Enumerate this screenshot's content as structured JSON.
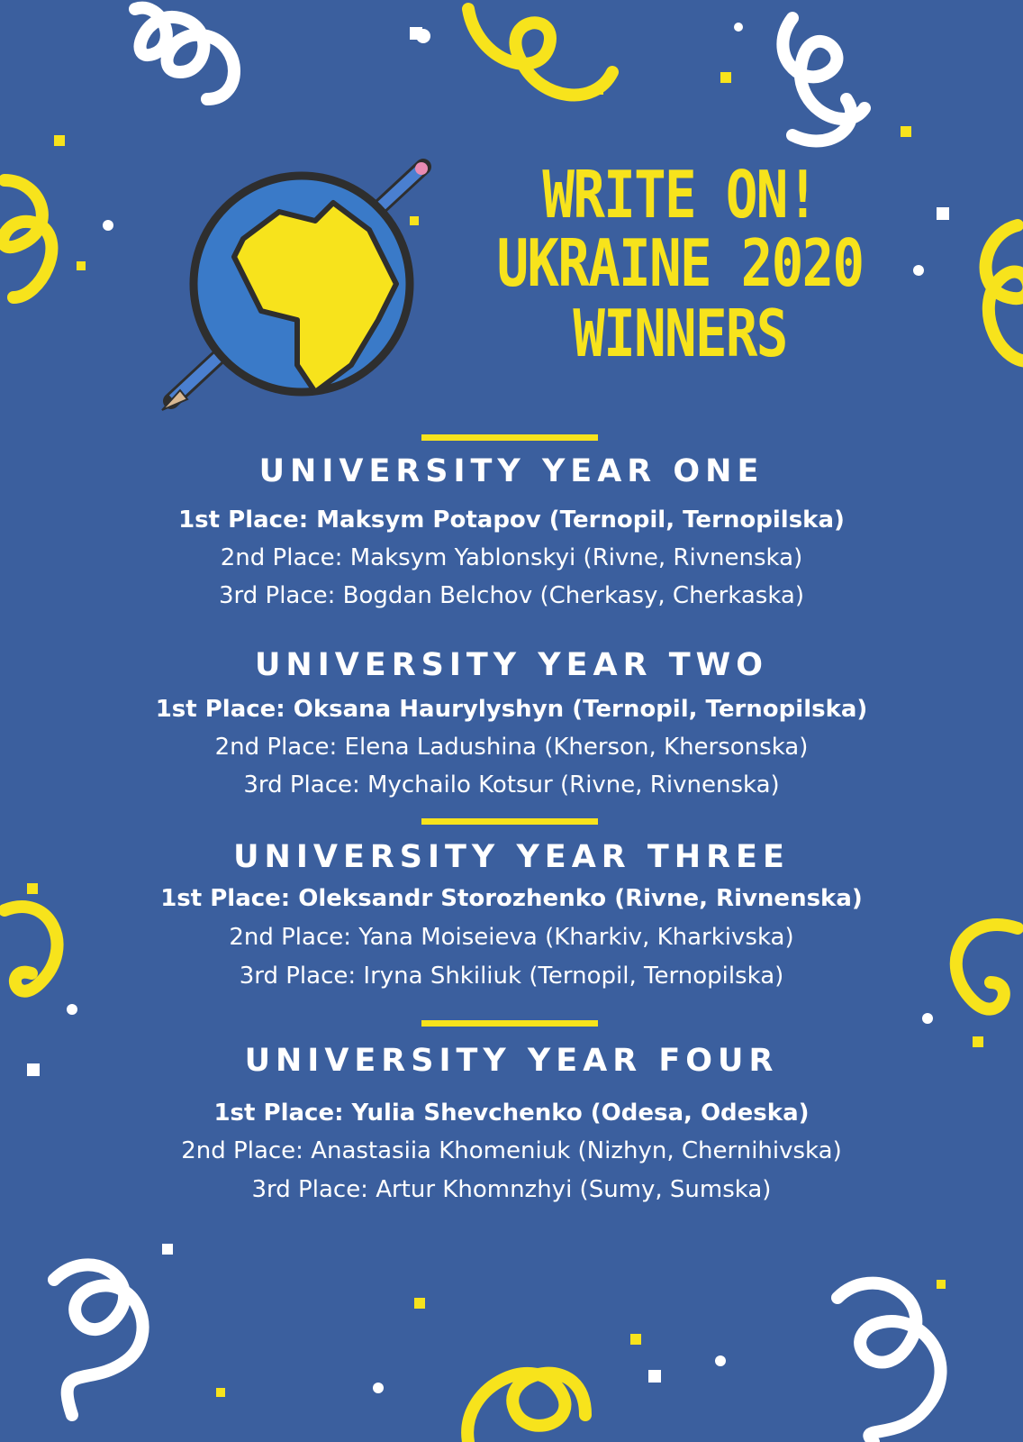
{
  "colors": {
    "background": "#3b5f9e",
    "accent": "#f7e31c",
    "text": "#ffffff",
    "globe_ocean": "#3a7ac8"
  },
  "logo": {
    "icon": "globe-with-pencil-icon"
  },
  "title": [
    "WRITE ON!",
    "UKRAINE 2020",
    "WINNERS"
  ],
  "sections": [
    {
      "heading": "UNIVERSITY YEAR ONE",
      "places": [
        "1st Place: Maksym Potapov (Ternopil, Ternopilska)",
        "2nd Place: Maksym Yablonskyi (Rivne, Rivnenska)",
        "3rd Place: Bogdan Belchov (Cherkasy, Cherkaska)"
      ]
    },
    {
      "heading": "UNIVERSITY YEAR TWO",
      "places": [
        "1st Place: Oksana Haurylyshyn (Ternopil, Ternopilska)",
        "2nd Place: Elena Ladushina (Kherson, Khersonska)",
        "3rd Place: Mychailo Kotsur (Rivne, Rivnenska)"
      ]
    },
    {
      "heading": "UNIVERSITY YEAR THREE",
      "places": [
        "1st Place: Oleksandr Storozhenko (Rivne, Rivnenska)",
        "2nd Place: Yana Moiseieva (Kharkiv, Kharkivska)",
        "3rd Place: Iryna Shkiliuk (Ternopil, Ternopilska)"
      ]
    },
    {
      "heading": "UNIVERSITY YEAR FOUR",
      "places": [
        "1st Place: Yulia Shevchenko (Odesa, Odeska)",
        "2nd Place: Anastasiia Khomeniuk (Nizhyn, Chernihivska)",
        "3rd Place: Artur Khomnzhyi (Sumy, Sumska)"
      ]
    }
  ]
}
